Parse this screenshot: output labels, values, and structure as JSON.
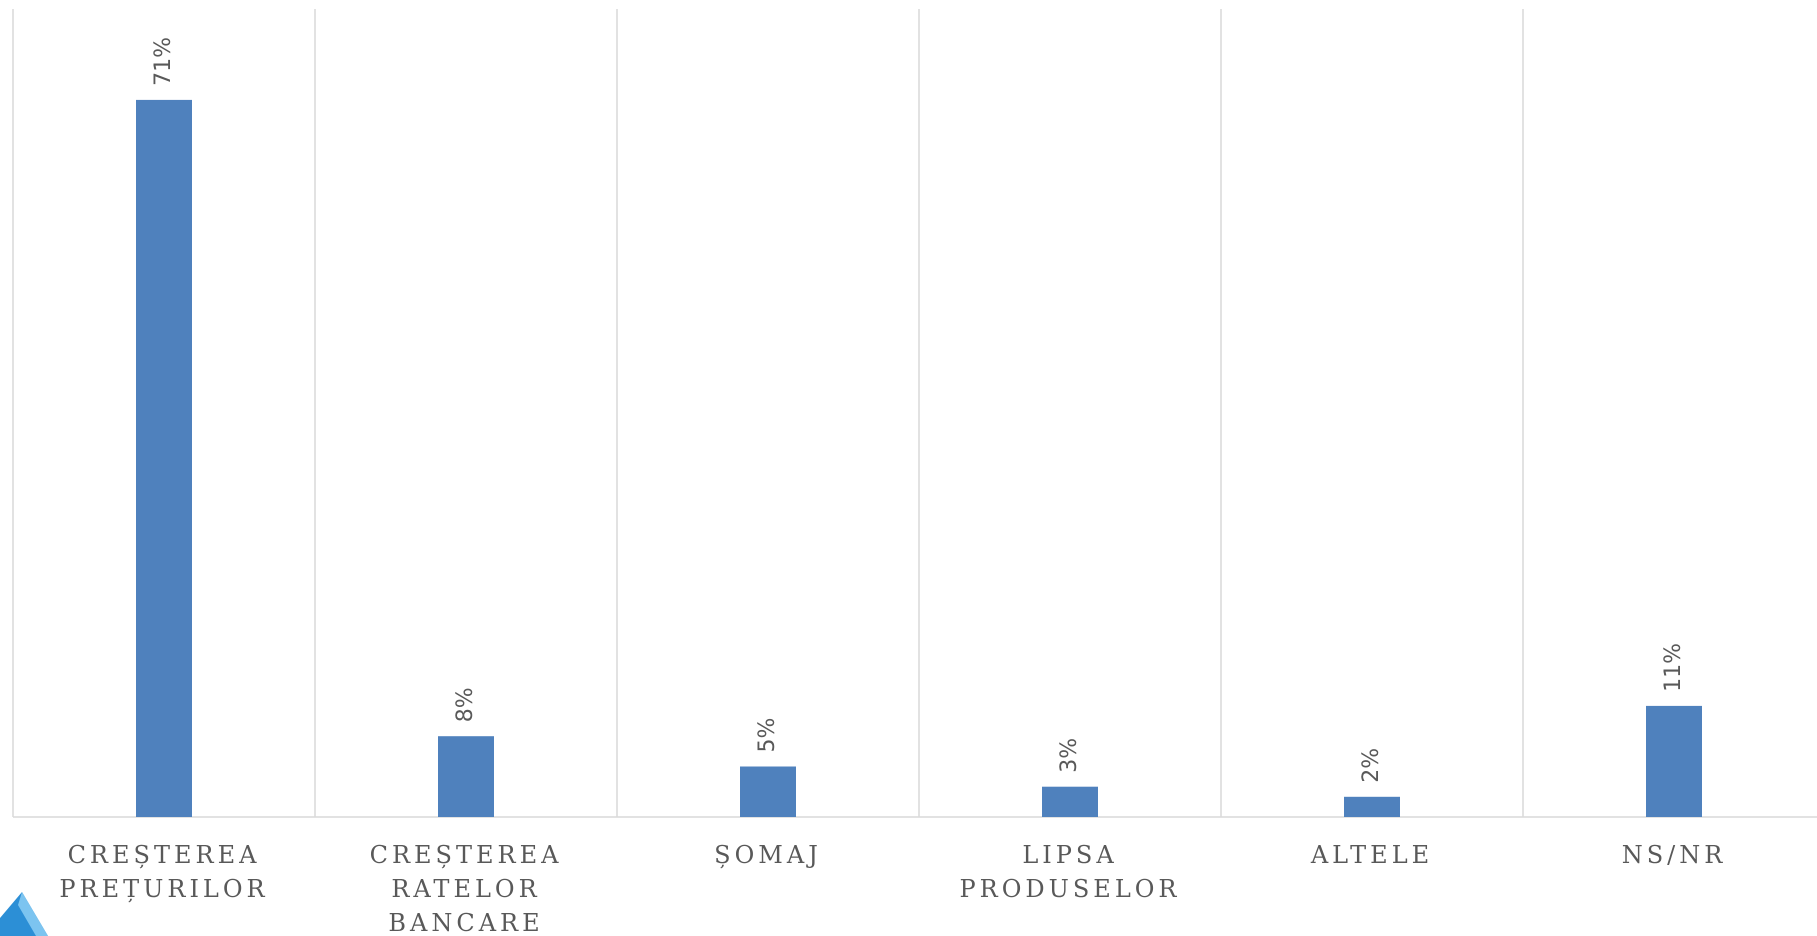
{
  "chart_data": {
    "type": "bar",
    "categories": [
      "CREȘTEREA PREȚURILOR",
      "CREȘTEREA RATELOR BANCARE",
      "ȘOMAJ",
      "LIPSA PRODUSELOR",
      "ALTELE",
      "NS/NR"
    ],
    "values": [
      71,
      8,
      5,
      3,
      2,
      11
    ],
    "value_labels": [
      "71%",
      "8%",
      "5%",
      "3%",
      "2%",
      "11%"
    ],
    "color": "#4f81bd",
    "ylim": [
      0,
      80
    ]
  }
}
